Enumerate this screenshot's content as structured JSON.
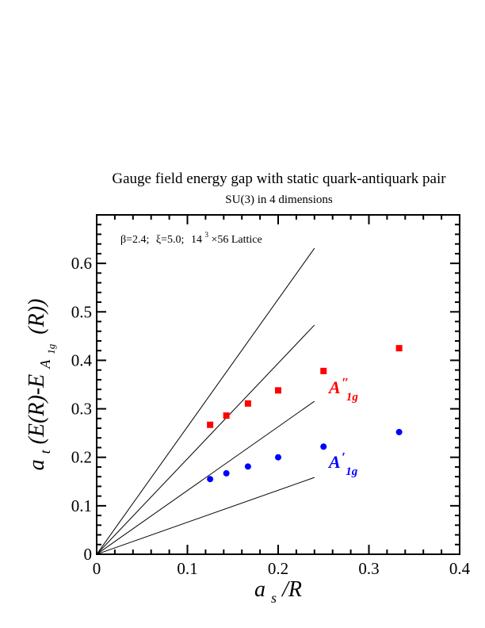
{
  "chart_data": {
    "type": "scatter",
    "title": "Gauge field energy gap with static quark-antiquark pair",
    "subtitle": "SU(3) in 4 dimensions",
    "annotation": {
      "beta": "β=2.4;",
      "xi": "ξ=5.0;",
      "lattice_base": "14",
      "lattice_exp": "3",
      "lattice_rest": "×56 Lattice"
    },
    "xlabel": {
      "main": "a",
      "sub": "s",
      "rest": "/R"
    },
    "ylabel": {
      "a": "a",
      "t": "t",
      "body": "(E(R)-E",
      "A": "A",
      "ig": "1g",
      "tail": "(R))"
    },
    "xlim": [
      0,
      0.4
    ],
    "ylim": [
      0,
      0.7
    ],
    "x_ticks": [
      0,
      0.1,
      0.2,
      0.3,
      0.4
    ],
    "x_tick_labels": [
      "0",
      "0.1",
      "0.2",
      "0.3",
      "0.4"
    ],
    "y_ticks": [
      0,
      0.1,
      0.2,
      0.3,
      0.4,
      0.5,
      0.6
    ],
    "y_tick_labels": [
      "0",
      "0.1",
      "0.2",
      "0.3",
      "0.4",
      "0.5",
      "0.6"
    ],
    "grid": false,
    "series": [
      {
        "name": "A″1g",
        "label_main": "A",
        "label_prime": "″",
        "label_sub": "1g",
        "color": "#ff0000",
        "marker": "square",
        "x": [
          0.125,
          0.1429,
          0.1667,
          0.2,
          0.25,
          0.3333
        ],
        "y": [
          0.267,
          0.286,
          0.311,
          0.338,
          0.378,
          0.425
        ]
      },
      {
        "name": "A′1g",
        "label_main": "A",
        "label_prime": "′",
        "label_sub": "1g",
        "color": "#0000ff",
        "marker": "circle",
        "x": [
          0.125,
          0.1429,
          0.1667,
          0.2,
          0.25,
          0.3333
        ],
        "y": [
          0.155,
          0.167,
          0.181,
          0.2,
          0.222,
          0.252
        ]
      }
    ],
    "reference_lines": [
      {
        "slope": 2.63,
        "x_end": 0.24
      },
      {
        "slope": 1.97,
        "x_end": 0.24
      },
      {
        "slope": 1.315,
        "x_end": 0.24
      },
      {
        "slope": 0.66,
        "x_end": 0.24
      }
    ]
  }
}
